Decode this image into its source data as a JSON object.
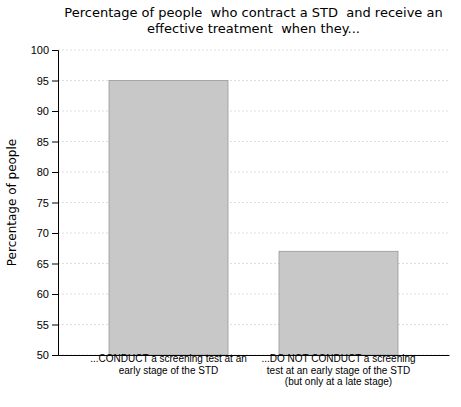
{
  "chart_data": {
    "type": "bar",
    "title": "Percentage of people  who contract a STD  and receive an\neffective treatment  when they...",
    "ylabel": "Percentage of people",
    "categories": [
      "...CONDUCT a screening test at an\nearly stage of the STD",
      "...DO NOT CONDUCT a screening\ntest at an early stage of the STD\n(but only at a late stage)"
    ],
    "values": [
      95,
      67
    ],
    "color": "#c8c8c8",
    "ylim": [
      50,
      100
    ],
    "yticks": [
      50,
      55,
      60,
      65,
      70,
      75,
      80,
      85,
      90,
      95,
      100
    ],
    "grid": true
  }
}
